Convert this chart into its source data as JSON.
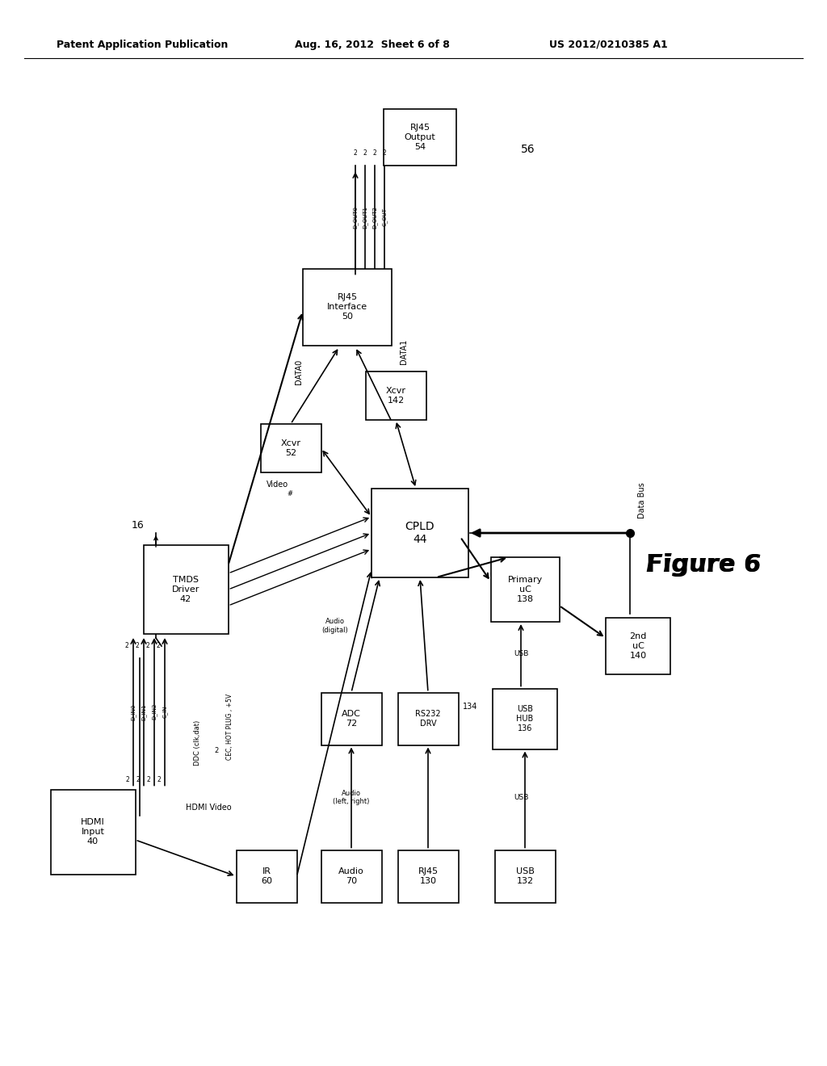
{
  "title_left": "Patent Application Publication",
  "title_mid": "Aug. 16, 2012  Sheet 6 of 8",
  "title_right": "US 2012/0210385 A1",
  "figure_label": "Figure 6",
  "background": "#ffffff"
}
